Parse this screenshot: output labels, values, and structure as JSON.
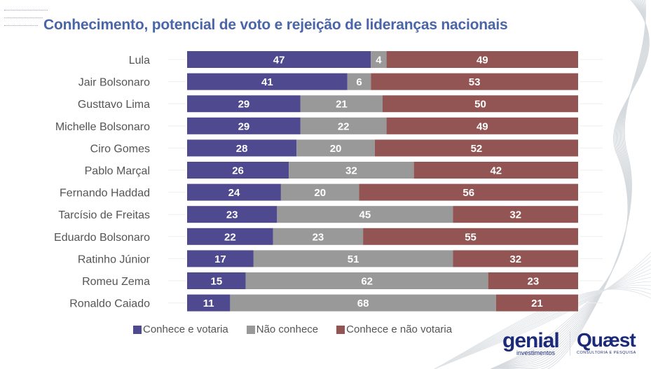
{
  "header": {
    "title": "Conhecimento, potencial de voto e rejeição de lideranças nacionais"
  },
  "colors": {
    "votaria": "#4f4a8f",
    "nao_conhece": "#999999",
    "nao_votaria": "#935553",
    "title": "#4a66a8"
  },
  "legend": [
    {
      "label": "Conhece e votaria",
      "color": "#4f4a8f"
    },
    {
      "label": "Não conhece",
      "color": "#999999"
    },
    {
      "label": "Conhece e não votaria",
      "color": "#935553"
    }
  ],
  "logos": {
    "genial": "genial",
    "genial_sub": "investimentos",
    "quaest": "Quæst",
    "quaest_sub": "CONSULTORIA E PESQUISA"
  },
  "chart_data": {
    "type": "bar",
    "orientation": "horizontal",
    "stacked": true,
    "normalized": true,
    "title": "Conhecimento, potencial de voto e rejeição de lideranças nacionais",
    "xlabel": "",
    "ylabel": "",
    "xlim": [
      0,
      100
    ],
    "grid": false,
    "legend_position": "bottom",
    "categories": [
      "Lula",
      "Jair Bolsonaro",
      "Gusttavo Lima",
      "Michelle Bolsonaro",
      "Ciro Gomes",
      "Pablo Marçal",
      "Fernando Haddad",
      "Tarcísio de Freitas",
      "Eduardo Bolsonaro",
      "Ratinho Júnior",
      "Romeu Zema",
      "Ronaldo Caiado"
    ],
    "series": [
      {
        "name": "Conhece e votaria",
        "color": "#4f4a8f",
        "values": [
          47,
          41,
          29,
          29,
          28,
          26,
          24,
          23,
          22,
          17,
          15,
          11
        ]
      },
      {
        "name": "Não conhece",
        "color": "#999999",
        "values": [
          4,
          6,
          21,
          22,
          20,
          32,
          20,
          45,
          23,
          51,
          62,
          68
        ]
      },
      {
        "name": "Conhece e não votaria",
        "color": "#935553",
        "values": [
          49,
          53,
          50,
          49,
          52,
          42,
          56,
          32,
          55,
          32,
          23,
          21
        ]
      }
    ]
  }
}
